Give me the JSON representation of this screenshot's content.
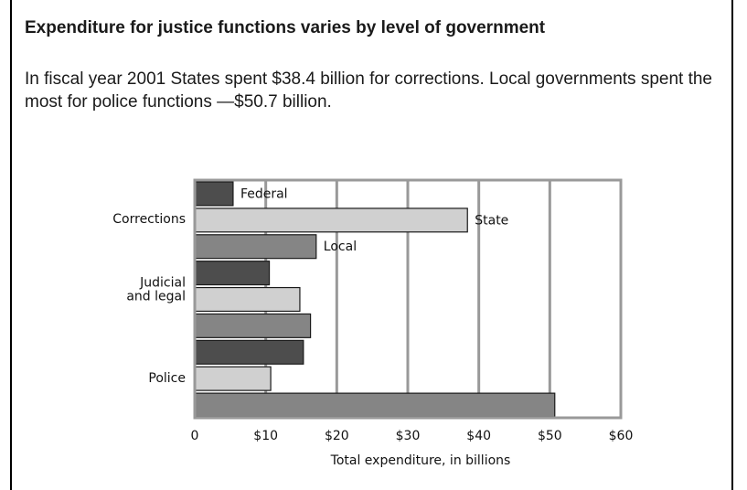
{
  "header": {
    "title": "Expenditure for justice functions varies by level of government",
    "subtitle": "In fiscal year 2001 States spent $38.4 billion for corrections. Local governments spent the most for police functions —$50.7 billion."
  },
  "chart_data": {
    "type": "bar",
    "orientation": "horizontal",
    "categories": [
      "Corrections",
      "Judicial and legal",
      "Police"
    ],
    "category_label_lines": [
      [
        "Corrections"
      ],
      [
        "Judicial",
        "and legal"
      ],
      [
        "Police"
      ]
    ],
    "series": [
      {
        "name": "Federal",
        "values": [
          5.4,
          10.5,
          15.3
        ],
        "color": "#4d4d4d"
      },
      {
        "name": "State",
        "values": [
          38.4,
          14.8,
          10.7
        ],
        "color": "#d0d0d0"
      },
      {
        "name": "Local",
        "values": [
          17.1,
          16.3,
          50.7
        ],
        "color": "#858585"
      }
    ],
    "xlabel": "Total expenditure, in billions",
    "ylabel": "",
    "xlim": [
      0,
      60
    ],
    "xticks": [
      0,
      10,
      20,
      30,
      40,
      50,
      60
    ],
    "xtick_labels": [
      "0",
      "$10",
      "$20",
      "$30",
      "$40",
      "$50",
      "$60"
    ],
    "grid": "vertical",
    "legend": "inline labels on the Corrections bars"
  }
}
